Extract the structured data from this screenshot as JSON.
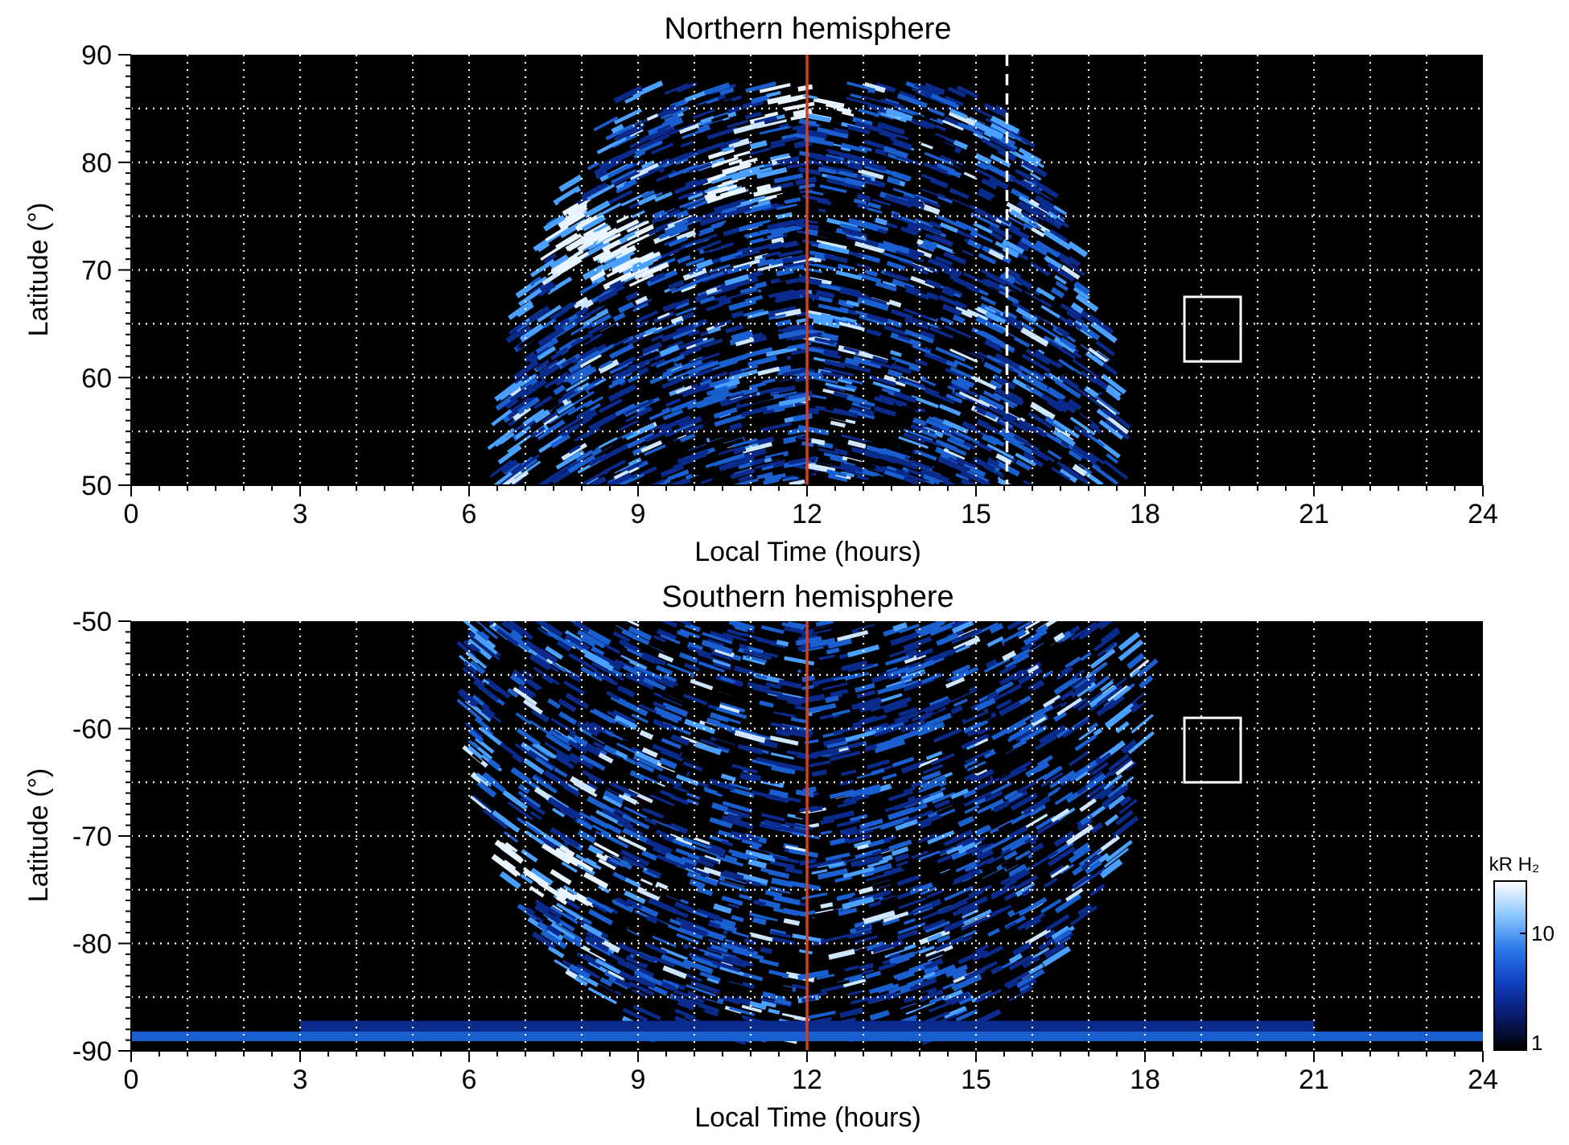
{
  "chart_data": [
    {
      "type": "heatmap",
      "title": "Northern hemisphere",
      "xlabel": "Local Time (hours)",
      "ylabel": "Latitude (°)",
      "xlim": [
        0,
        24
      ],
      "ylim": [
        50,
        90
      ],
      "xticks": [
        "0",
        "3",
        "6",
        "9",
        "12",
        "15",
        "18",
        "21",
        "24"
      ],
      "yticks": [
        "50",
        "60",
        "70",
        "80",
        "90"
      ],
      "grid": true,
      "grid_step": {
        "x": 1,
        "y": 5
      },
      "emission_extent": {
        "lt_start": 6.4,
        "lt_end": 17.7,
        "lat_min": 50,
        "lat_max": 87
      },
      "bright_regions": [
        {
          "lt": [
            7.5,
            9.3
          ],
          "lat": [
            69,
            76
          ]
        },
        {
          "lt": [
            10.2,
            11.4
          ],
          "lat": [
            76,
            81
          ]
        },
        {
          "lt": [
            11.2,
            12.8
          ],
          "lat": [
            84,
            87
          ]
        }
      ],
      "reference_lines": [
        {
          "lt": 12.0,
          "style": "solid",
          "color": "#d04020"
        },
        {
          "lt": 15.55,
          "style": "dashed",
          "color": "#ffffff"
        }
      ],
      "box": {
        "lt": [
          18.7,
          19.7
        ],
        "lat": [
          61.5,
          67.5
        ]
      }
    },
    {
      "type": "heatmap",
      "title": "Southern hemisphere",
      "xlabel": "Local Time (hours)",
      "ylabel": "Latitude (°)",
      "xlim": [
        0,
        24
      ],
      "ylim": [
        -90,
        -50
      ],
      "xticks": [
        "0",
        "3",
        "6",
        "9",
        "12",
        "15",
        "18",
        "21",
        "24"
      ],
      "yticks": [
        "-50",
        "-60",
        "-70",
        "-80",
        "-90"
      ],
      "grid": true,
      "grid_step": {
        "x": 1,
        "y": 5
      },
      "emission_extent": {
        "lt_start": 5.8,
        "lt_end": 18.2,
        "lat_min": -89,
        "lat_max": -50
      },
      "bright_regions": [
        {
          "lt": [
            5.8,
            8.5
          ],
          "lat": [
            -76,
            -71
          ]
        }
      ],
      "reference_lines": [
        {
          "lt": 12.0,
          "style": "solid",
          "color": "#d04020"
        }
      ],
      "box": {
        "lt": [
          18.7,
          19.7
        ],
        "lat": [
          -65,
          -59
        ]
      }
    }
  ],
  "colorbar": {
    "label": "kR H₂",
    "ticks": [
      "10",
      "1"
    ],
    "scale": "log",
    "range": [
      1,
      30
    ],
    "colors": [
      "#000000",
      "#0a1a6a",
      "#1040c0",
      "#2a7ae8",
      "#8cc8ff",
      "#ffffff"
    ]
  },
  "colors": {
    "background": "#000000",
    "grid": "#ffffff",
    "emission_low": "#0a2a8c",
    "emission_mid": "#1a5fd0",
    "emission_high": "#4aa0ff",
    "emission_peak": "#e8f4ff"
  }
}
